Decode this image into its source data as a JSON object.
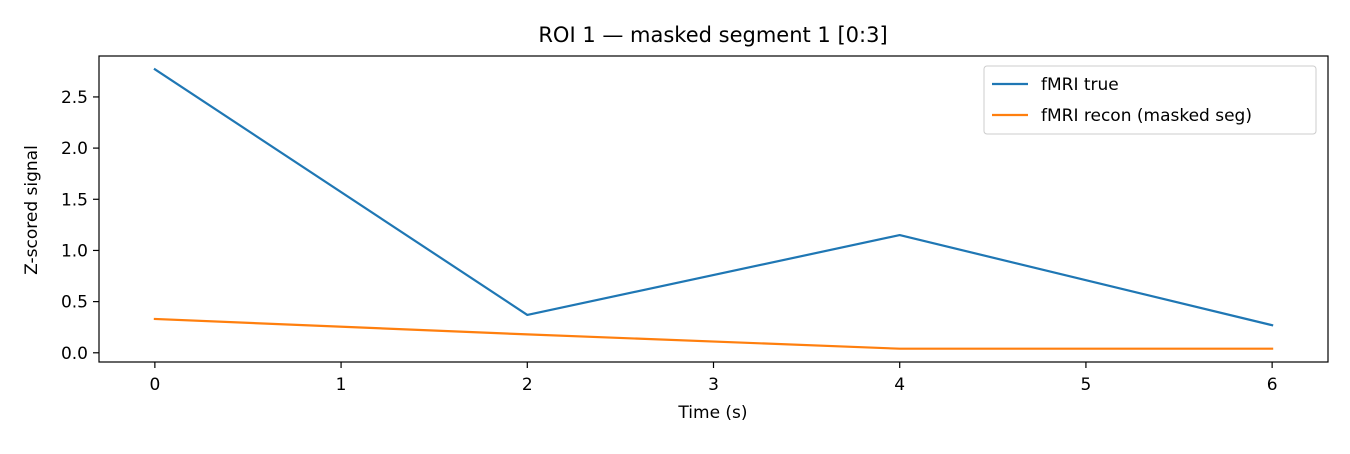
{
  "chart_data": {
    "type": "line",
    "title": "ROI 1 — masked segment 1 [0:3]",
    "xlabel": "Time (s)",
    "ylabel": "Z-scored signal",
    "xlim": [
      -0.3,
      6.3
    ],
    "ylim": [
      -0.09,
      2.9
    ],
    "xticks": [
      0,
      1,
      2,
      3,
      4,
      5,
      6
    ],
    "xtick_labels": [
      "0",
      "1",
      "2",
      "3",
      "4",
      "5",
      "6"
    ],
    "yticks": [
      0.0,
      0.5,
      1.0,
      1.5,
      2.0,
      2.5
    ],
    "ytick_labels": [
      "0.0",
      "0.5",
      "1.0",
      "1.5",
      "2.0",
      "2.5"
    ],
    "grid": false,
    "legend_position": "top-right",
    "series": [
      {
        "name": "fMRI true",
        "color": "#1f77b4",
        "x": [
          0,
          2,
          4,
          6
        ],
        "y": [
          2.77,
          0.37,
          1.15,
          0.27
        ]
      },
      {
        "name": "fMRI recon (masked seg)",
        "color": "#ff7f0e",
        "x": [
          0,
          2,
          4,
          6
        ],
        "y": [
          0.33,
          0.18,
          0.04,
          0.04
        ]
      }
    ]
  }
}
